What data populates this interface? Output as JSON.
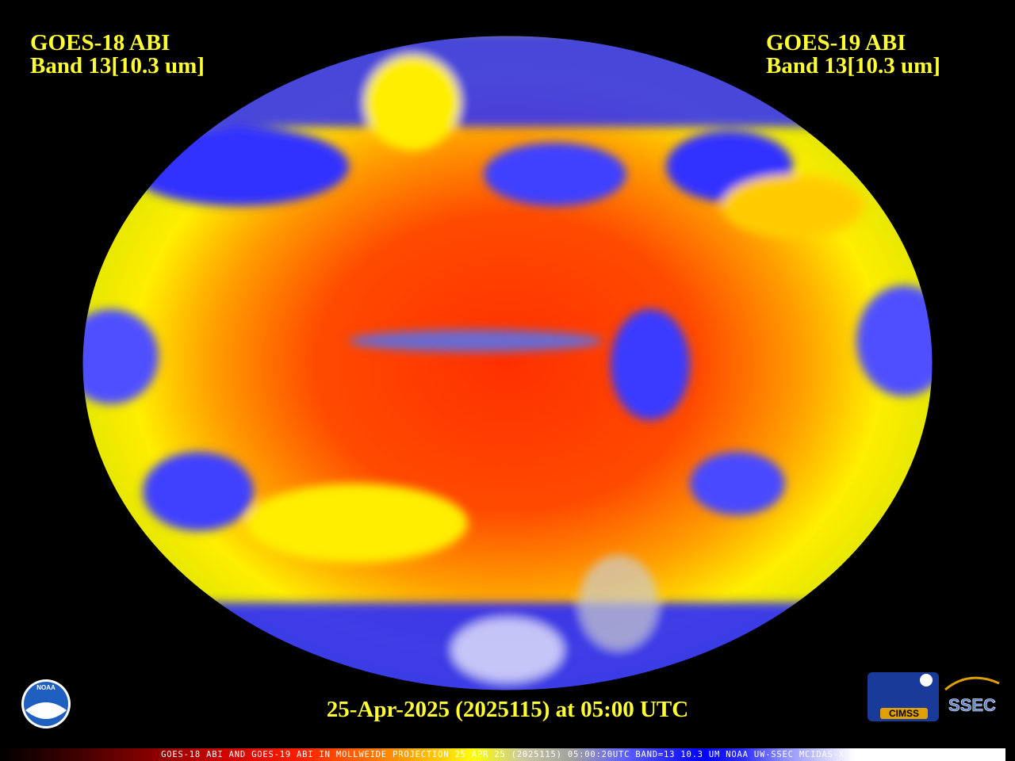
{
  "header": {
    "left": {
      "satellite": "GOES-18 ABI",
      "band": "Band 13[10.3 um]"
    },
    "right": {
      "satellite": "GOES-19 ABI",
      "band": "Band 13[10.3 um]"
    }
  },
  "timestamp": "25-Apr-2025 (2025115) at 05:00 UTC",
  "colorbar_caption": "GOES-18 ABI AND GOES-19 ABI IN MOLLWEIDE PROJECTION 25 APR 25 (2025115) 05:00:20UTC BAND=13 10.3 UM NOAA UW-SSEC MCIDAS-X",
  "logos": {
    "noaa": "NOAA",
    "cimss": "CIMSS",
    "ssec": "SSEC"
  }
}
